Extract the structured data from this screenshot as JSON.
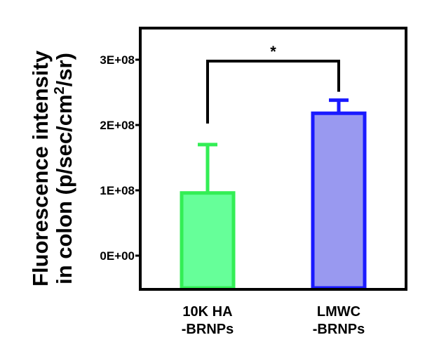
{
  "chart_data": {
    "type": "bar",
    "ylabel_line1": "Fluorescence intensity",
    "ylabel_line2_prefix": "in colon (p/sec/cm",
    "ylabel_line2_sup": "2",
    "ylabel_line2_suffix": "/sr)",
    "ylim": [
      -50000000.0,
      350000000.0
    ],
    "yticks": [
      0,
      100000000.0,
      200000000.0,
      300000000.0
    ],
    "ytick_labels": [
      "0E+00",
      "1E+08",
      "2E+08",
      "3E+08"
    ],
    "categories": [
      {
        "line1": "10K HA",
        "line2": "-BRNPs"
      },
      {
        "line1": "LMWC",
        "line2": "-BRNPs"
      }
    ],
    "values": [
      96000000.0,
      218000000.0
    ],
    "errors": [
      74000000.0,
      20000000.0
    ],
    "colors": {
      "bar_fill": [
        "#66ff99",
        "#9999f0"
      ],
      "bar_stroke": [
        "#33ee55",
        "#1a1aff"
      ]
    },
    "significance": {
      "from": 0,
      "to": 1,
      "label": "*",
      "level": 285000000.0
    },
    "grid": false
  }
}
